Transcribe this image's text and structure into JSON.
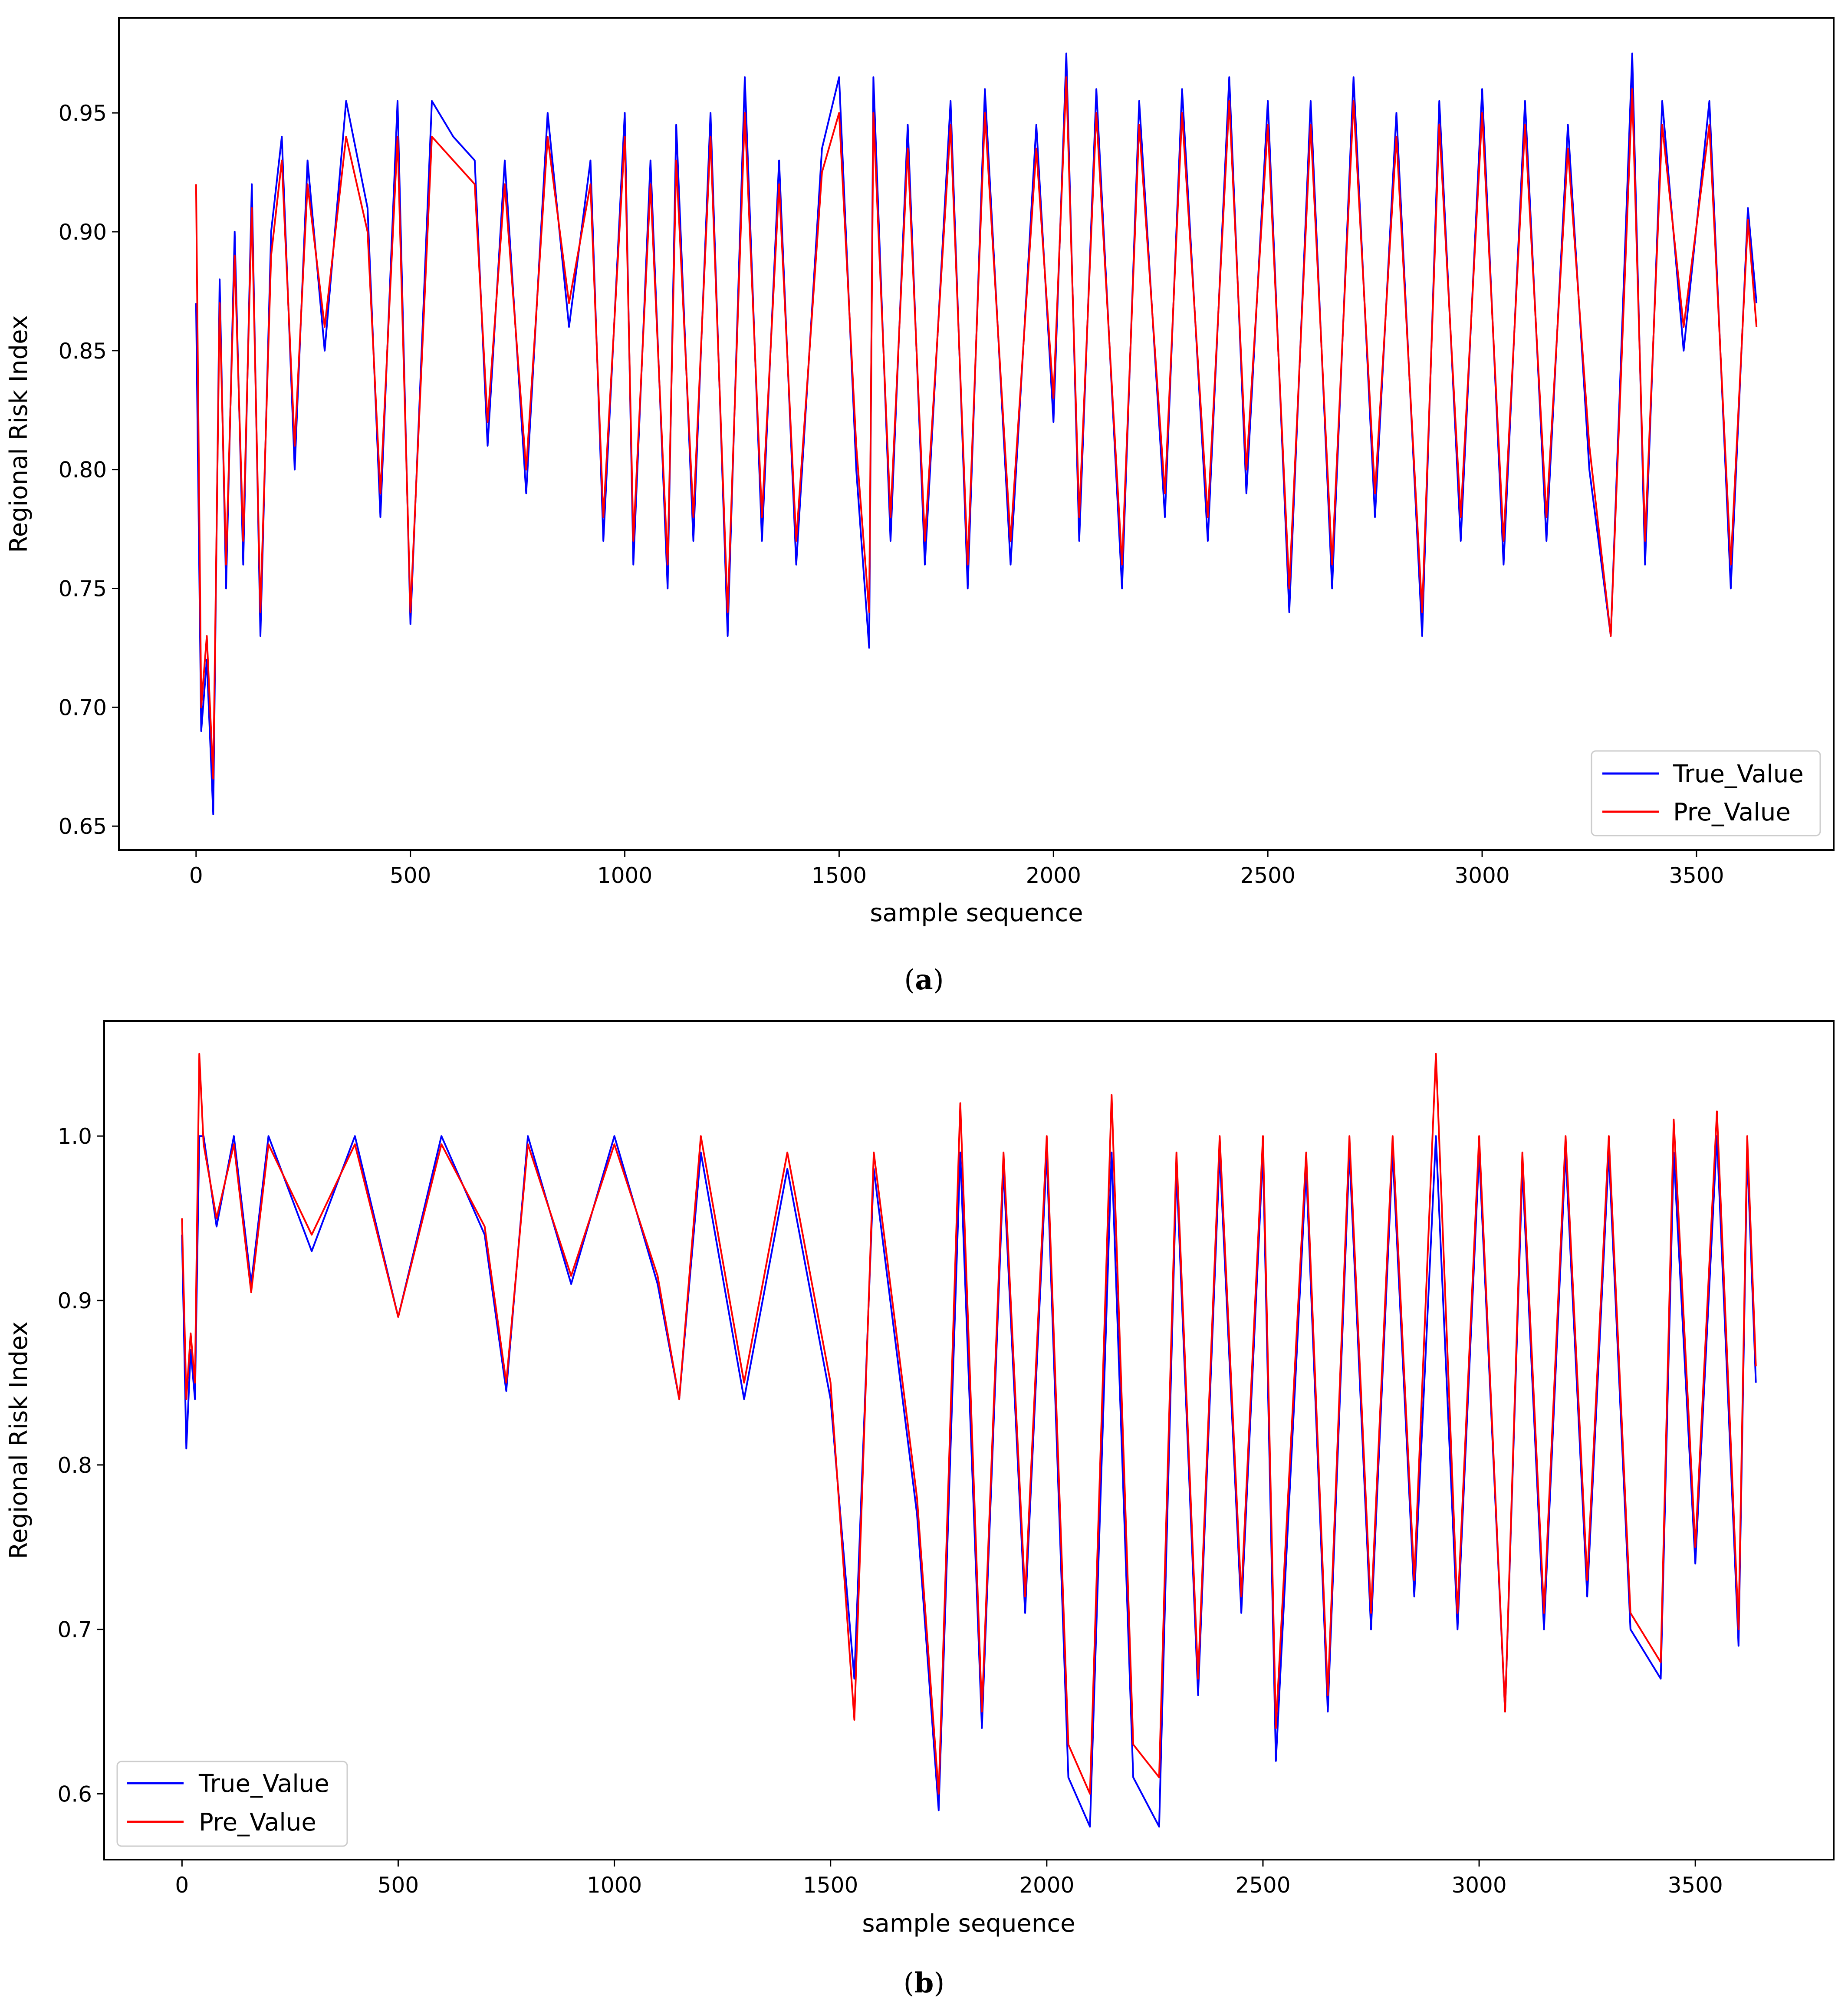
{
  "figure": {
    "panels": [
      {
        "caption_letter": "a",
        "caption_open": "(",
        "caption_close": ")"
      },
      {
        "caption_letter": "b",
        "caption_open": "(",
        "caption_close": ")"
      }
    ]
  },
  "chart_data": [
    {
      "type": "line",
      "panel": "a",
      "title": "",
      "xlabel": "sample sequence",
      "ylabel": "Regional Risk Index",
      "xlim": [
        -180,
        3820
      ],
      "ylim": [
        0.64,
        0.99
      ],
      "xticks": [
        0,
        500,
        1000,
        1500,
        2000,
        2500,
        3000,
        3500
      ],
      "xtick_labels": [
        "0",
        "500",
        "1000",
        "1500",
        "2000",
        "2500",
        "3000",
        "3500"
      ],
      "yticks": [
        0.65,
        0.7,
        0.75,
        0.8,
        0.85,
        0.9,
        0.95
      ],
      "ytick_labels": [
        "0.65",
        "0.70",
        "0.75",
        "0.80",
        "0.85",
        "0.90",
        "0.95"
      ],
      "legend_position": "lower-right",
      "series": [
        {
          "name": "True_Value",
          "color": "#0000ff",
          "x": [
            0,
            12,
            25,
            40,
            55,
            70,
            90,
            110,
            130,
            150,
            175,
            200,
            230,
            260,
            300,
            350,
            400,
            430,
            470,
            500,
            550,
            600,
            650,
            680,
            720,
            770,
            820,
            870,
            920,
            950,
            1000,
            1020,
            1060,
            1100,
            1120,
            1160,
            1200,
            1240,
            1280,
            1320,
            1360,
            1400,
            1460,
            1500,
            1540,
            1570,
            1580,
            1620,
            1660,
            1700,
            1760,
            1800,
            1840,
            1900,
            1960,
            2000,
            2030,
            2060,
            2100,
            2160,
            2200,
            2260,
            2300,
            2360,
            2410,
            2450,
            2500,
            2550,
            2600,
            2650,
            2700,
            2750,
            2800,
            2860,
            2900,
            2950,
            3000,
            3050,
            3100,
            3150,
            3200,
            3250,
            3300,
            3350,
            3380,
            3420,
            3470,
            3530,
            3580,
            3620,
            3640
          ],
          "y": [
            0.87,
            0.69,
            0.72,
            0.655,
            0.88,
            0.75,
            0.9,
            0.76,
            0.92,
            0.73,
            0.9,
            0.94,
            0.8,
            0.93,
            0.85,
            0.955,
            0.91,
            0.78,
            0.955,
            0.735,
            0.955,
            0.94,
            0.93,
            0.81,
            0.93,
            0.79,
            0.95,
            0.86,
            0.93,
            0.77,
            0.95,
            0.76,
            0.93,
            0.75,
            0.945,
            0.77,
            0.95,
            0.73,
            0.965,
            0.77,
            0.93,
            0.76,
            0.935,
            0.965,
            0.8,
            0.725,
            0.965,
            0.77,
            0.945,
            0.76,
            0.955,
            0.75,
            0.96,
            0.76,
            0.945,
            0.82,
            0.975,
            0.77,
            0.96,
            0.75,
            0.955,
            0.78,
            0.96,
            0.77,
            0.965,
            0.79,
            0.955,
            0.74,
            0.955,
            0.75,
            0.965,
            0.78,
            0.95,
            0.73,
            0.955,
            0.77,
            0.96,
            0.76,
            0.955,
            0.77,
            0.945,
            0.8,
            0.73,
            0.975,
            0.76,
            0.955,
            0.85,
            0.955,
            0.75,
            0.91,
            0.87
          ]
        },
        {
          "name": "Pre_Value",
          "color": "#ff0000",
          "x": [
            0,
            12,
            25,
            40,
            55,
            70,
            90,
            110,
            130,
            150,
            175,
            200,
            230,
            260,
            300,
            350,
            400,
            430,
            470,
            500,
            550,
            600,
            650,
            680,
            720,
            770,
            820,
            870,
            920,
            950,
            1000,
            1020,
            1060,
            1100,
            1120,
            1160,
            1200,
            1240,
            1280,
            1320,
            1360,
            1400,
            1460,
            1500,
            1540,
            1570,
            1580,
            1620,
            1660,
            1700,
            1760,
            1800,
            1840,
            1900,
            1960,
            2000,
            2030,
            2060,
            2100,
            2160,
            2200,
            2260,
            2300,
            2360,
            2410,
            2450,
            2500,
            2550,
            2600,
            2650,
            2700,
            2750,
            2800,
            2860,
            2900,
            2950,
            3000,
            3050,
            3100,
            3150,
            3200,
            3250,
            3300,
            3350,
            3380,
            3420,
            3470,
            3530,
            3580,
            3620,
            3640
          ],
          "y": [
            0.92,
            0.7,
            0.73,
            0.67,
            0.87,
            0.76,
            0.89,
            0.77,
            0.91,
            0.74,
            0.89,
            0.93,
            0.81,
            0.92,
            0.86,
            0.94,
            0.9,
            0.79,
            0.94,
            0.74,
            0.94,
            0.93,
            0.92,
            0.82,
            0.92,
            0.8,
            0.94,
            0.87,
            0.92,
            0.78,
            0.94,
            0.77,
            0.92,
            0.76,
            0.93,
            0.78,
            0.94,
            0.74,
            0.95,
            0.78,
            0.92,
            0.77,
            0.925,
            0.95,
            0.81,
            0.74,
            0.95,
            0.78,
            0.935,
            0.77,
            0.945,
            0.76,
            0.95,
            0.77,
            0.935,
            0.83,
            0.965,
            0.78,
            0.95,
            0.76,
            0.945,
            0.79,
            0.95,
            0.78,
            0.955,
            0.8,
            0.945,
            0.75,
            0.945,
            0.76,
            0.955,
            0.79,
            0.94,
            0.74,
            0.945,
            0.78,
            0.95,
            0.77,
            0.945,
            0.78,
            0.935,
            0.81,
            0.73,
            0.96,
            0.77,
            0.945,
            0.86,
            0.945,
            0.76,
            0.905,
            0.86
          ]
        }
      ]
    },
    {
      "type": "line",
      "panel": "b",
      "title": "",
      "xlabel": "sample sequence",
      "ylabel": "Regional Risk Index",
      "xlim": [
        -180,
        3820
      ],
      "ylim": [
        0.56,
        1.07
      ],
      "xticks": [
        0,
        500,
        1000,
        1500,
        2000,
        2500,
        3000,
        3500
      ],
      "xtick_labels": [
        "0",
        "500",
        "1000",
        "1500",
        "2000",
        "2500",
        "3000",
        "3500"
      ],
      "yticks": [
        0.6,
        0.7,
        0.8,
        0.9,
        1.0
      ],
      "ytick_labels": [
        "0.6",
        "0.7",
        "0.8",
        "0.9",
        "1.0"
      ],
      "legend_position": "lower-left",
      "series": [
        {
          "name": "True_Value",
          "color": "#0000ff",
          "x": [
            0,
            10,
            20,
            30,
            40,
            50,
            80,
            120,
            160,
            200,
            300,
            400,
            500,
            600,
            700,
            750,
            800,
            900,
            1000,
            1100,
            1150,
            1200,
            1300,
            1400,
            1500,
            1555,
            1600,
            1700,
            1750,
            1800,
            1850,
            1900,
            1950,
            2000,
            2050,
            2100,
            2150,
            2200,
            2260,
            2300,
            2350,
            2400,
            2450,
            2500,
            2530,
            2600,
            2650,
            2700,
            2750,
            2800,
            2850,
            2900,
            2950,
            3000,
            3060,
            3100,
            3150,
            3200,
            3250,
            3300,
            3350,
            3420,
            3450,
            3500,
            3550,
            3600,
            3620,
            3640
          ],
          "y": [
            0.94,
            0.81,
            0.87,
            0.84,
            1.0,
            1.0,
            0.945,
            1.0,
            0.91,
            1.0,
            0.93,
            1.0,
            0.89,
            1.0,
            0.94,
            0.845,
            1.0,
            0.91,
            1.0,
            0.91,
            0.84,
            0.99,
            0.84,
            0.98,
            0.84,
            0.67,
            0.98,
            0.77,
            0.59,
            0.99,
            0.64,
            0.98,
            0.71,
            0.99,
            0.61,
            0.58,
            0.99,
            0.61,
            0.58,
            0.98,
            0.66,
            0.99,
            0.71,
            0.99,
            0.62,
            0.98,
            0.65,
            0.99,
            0.7,
            0.99,
            0.72,
            1.0,
            0.7,
            0.99,
            0.65,
            0.98,
            0.7,
            0.99,
            0.72,
            0.99,
            0.7,
            0.67,
            0.99,
            0.74,
            1.0,
            0.69,
            0.99,
            0.85
          ]
        },
        {
          "name": "Pre_Value",
          "color": "#ff0000",
          "x": [
            0,
            10,
            20,
            30,
            40,
            50,
            80,
            120,
            160,
            200,
            300,
            400,
            500,
            600,
            700,
            750,
            800,
            900,
            1000,
            1100,
            1150,
            1200,
            1300,
            1400,
            1500,
            1555,
            1600,
            1700,
            1750,
            1800,
            1850,
            1900,
            1950,
            2000,
            2050,
            2100,
            2150,
            2200,
            2260,
            2300,
            2350,
            2400,
            2450,
            2500,
            2530,
            2600,
            2650,
            2700,
            2750,
            2800,
            2850,
            2900,
            2950,
            3000,
            3060,
            3100,
            3150,
            3200,
            3250,
            3300,
            3350,
            3420,
            3450,
            3500,
            3550,
            3600,
            3620,
            3640
          ],
          "y": [
            0.95,
            0.84,
            0.88,
            0.85,
            1.05,
            0.995,
            0.95,
            0.995,
            0.905,
            0.995,
            0.94,
            0.995,
            0.89,
            0.995,
            0.945,
            0.85,
            0.995,
            0.915,
            0.995,
            0.915,
            0.84,
            1.0,
            0.85,
            0.99,
            0.85,
            0.645,
            0.99,
            0.78,
            0.6,
            1.02,
            0.65,
            0.99,
            0.72,
            1.0,
            0.63,
            0.6,
            1.025,
            0.63,
            0.61,
            0.99,
            0.67,
            1.0,
            0.72,
            1.0,
            0.64,
            0.99,
            0.66,
            1.0,
            0.71,
            1.0,
            0.73,
            1.05,
            0.71,
            1.0,
            0.65,
            0.99,
            0.71,
            1.0,
            0.73,
            1.0,
            0.71,
            0.68,
            1.01,
            0.75,
            1.015,
            0.7,
            1.0,
            0.86
          ]
        }
      ]
    }
  ]
}
